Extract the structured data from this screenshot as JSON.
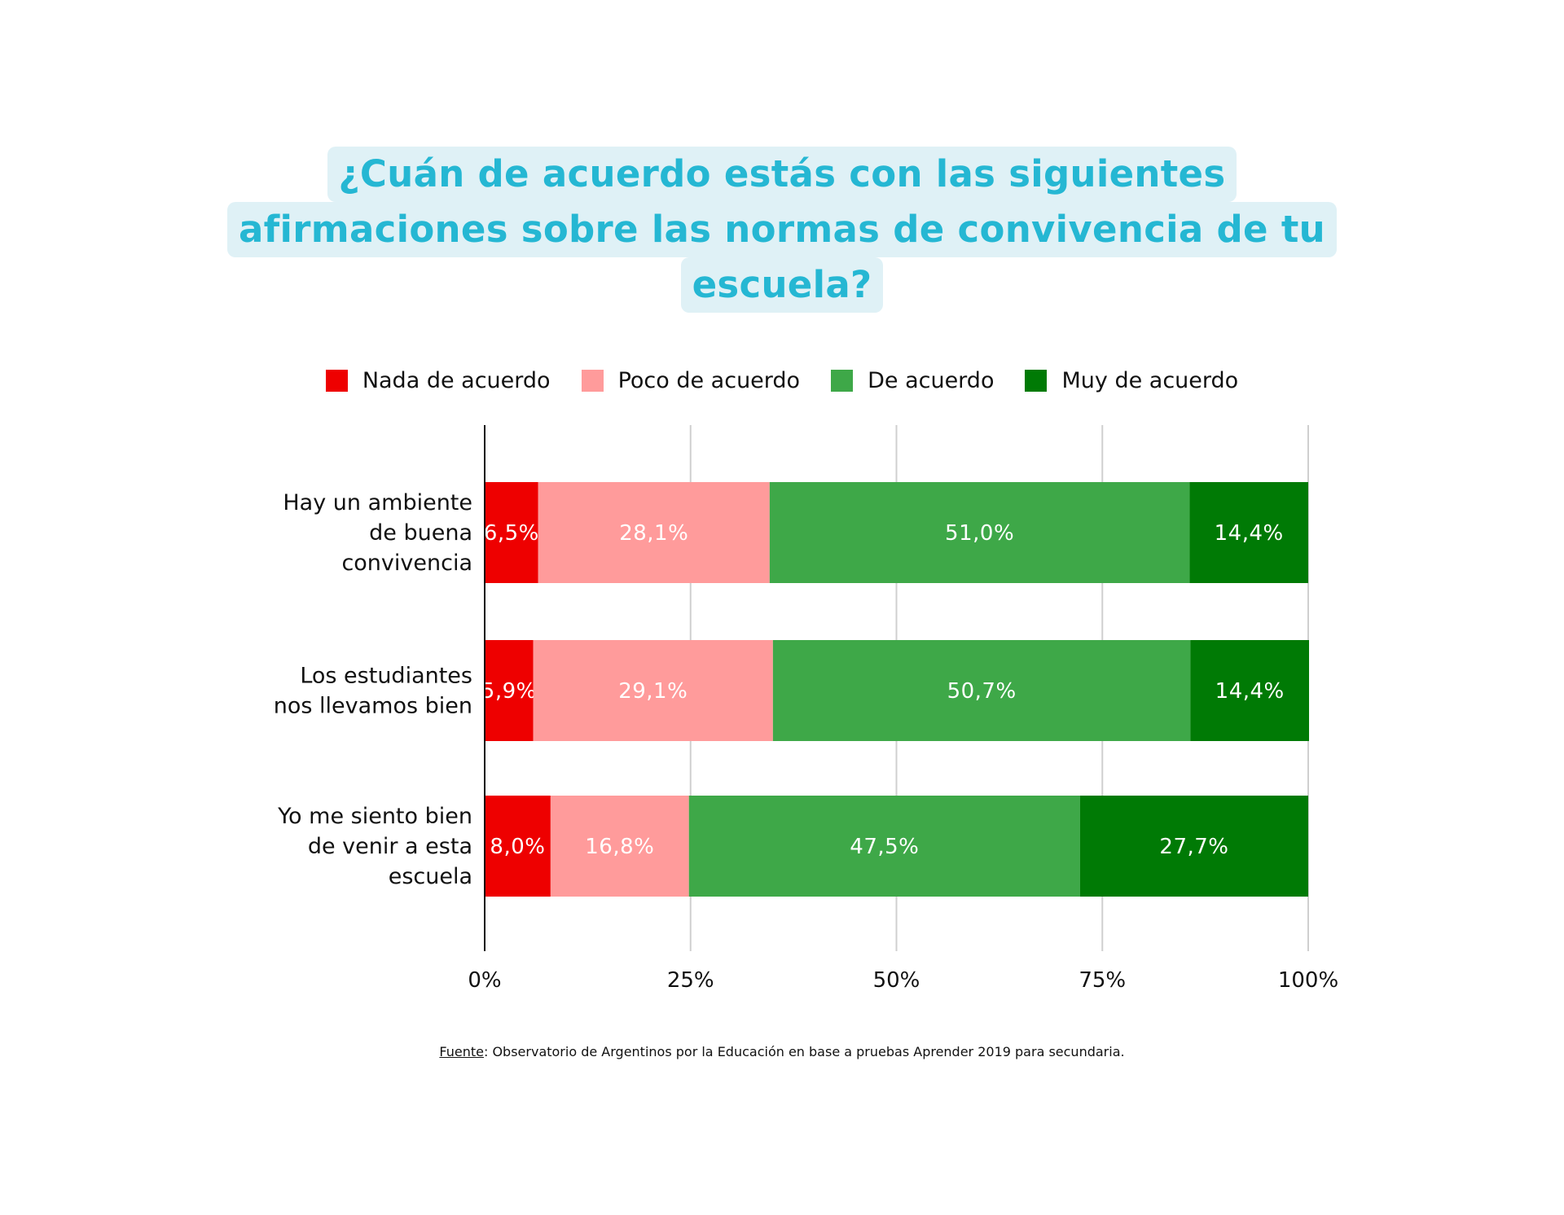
{
  "title_lines": [
    "¿Cuán de acuerdo estás con las siguientes",
    "afirmaciones sobre las normas de convivencia de tu",
    "escuela?"
  ],
  "source": {
    "label": "Fuente",
    "text": ": Observatorio de Argentinos por la Educación en base a pruebas Aprender 2019 para secundaria."
  },
  "colors": {
    "title_text": "#25b7d3",
    "title_background": "#dff1f6"
  },
  "chart_data": {
    "type": "bar",
    "orientation": "horizontal",
    "stacked": true,
    "categories": [
      [
        "Hay un ambiente",
        "de buena",
        "convivencia"
      ],
      [
        "Los estudiantes",
        "nos llevamos bien"
      ],
      [
        "Yo me siento bien",
        "de venir a esta",
        "escuela"
      ]
    ],
    "series": [
      {
        "name": "Nada de acuerdo",
        "color": "#ee0000",
        "label_color": "#ffffff",
        "values": [
          6.5,
          5.9,
          8.0
        ],
        "labels": [
          "6,5%",
          "5,9%",
          "8,0%"
        ]
      },
      {
        "name": "Poco de acuerdo",
        "color": "#ff9b9b",
        "label_color": "#ffffff",
        "values": [
          28.1,
          29.1,
          16.8
        ],
        "labels": [
          "28,1%",
          "29,1%",
          "16,8%"
        ]
      },
      {
        "name": "De acuerdo",
        "color": "#3ea848",
        "label_color": "#ffffff",
        "values": [
          51.0,
          50.7,
          47.5
        ],
        "labels": [
          "51,0%",
          "50,7%",
          "47,5%"
        ]
      },
      {
        "name": "Muy de acuerdo",
        "color": "#007a05",
        "label_color": "#ffffff",
        "values": [
          14.4,
          14.4,
          27.7
        ],
        "labels": [
          "14,4%",
          "14,4%",
          "27,7%"
        ]
      }
    ],
    "xlim": [
      0,
      100
    ],
    "x_ticks": [
      0,
      25,
      50,
      75,
      100
    ],
    "x_tick_labels": [
      "0%",
      "25%",
      "50%",
      "75%",
      "100%"
    ],
    "grid": true,
    "legend_position": "top"
  }
}
